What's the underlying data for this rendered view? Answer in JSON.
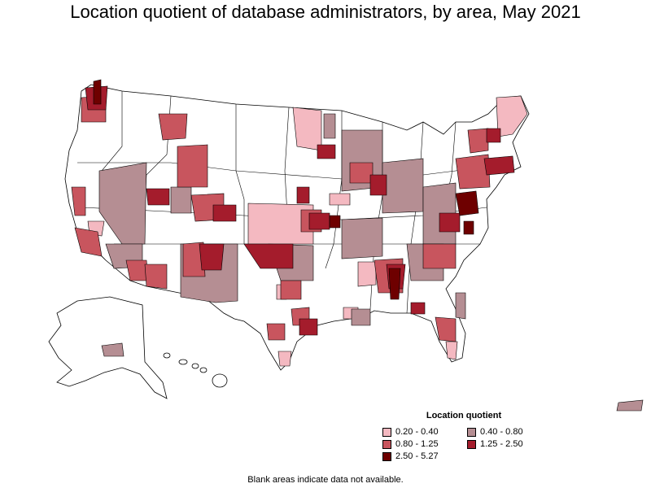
{
  "title": "Location quotient of database administrators, by area, May 2021",
  "legend": {
    "title": "Location quotient",
    "items": [
      {
        "label": "0.20 - 0.40",
        "color": "#f4b9c1"
      },
      {
        "label": "0.40 - 0.80",
        "color": "#b58e93"
      },
      {
        "label": "0.80 - 1.25",
        "color": "#c8555e"
      },
      {
        "label": "1.25 - 2.50",
        "color": "#a41c2c"
      },
      {
        "label": "2.50 - 5.27",
        "color": "#6e0000"
      }
    ]
  },
  "note": "Blank areas indicate data not available.",
  "map": {
    "region": "United States (including Alaska, Hawaii, Puerto Rico)",
    "boundary_level": "metropolitan and nonmetropolitan areas",
    "palette": {
      "low": "#f4b9c1",
      "mid_low": "#b58e93",
      "mid": "#c8555e",
      "high": "#a41c2c",
      "very_high": "#6e0000",
      "no_data": "#ffffff"
    }
  }
}
